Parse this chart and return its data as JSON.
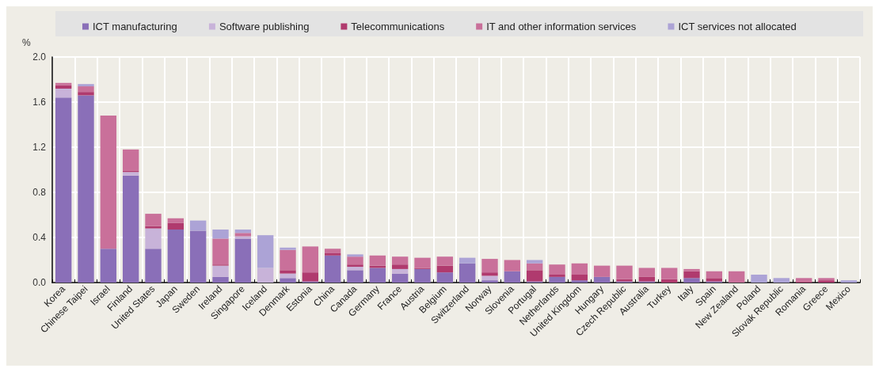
{
  "chart_data": {
    "type": "bar",
    "stacked": true,
    "ylabel": "%",
    "legend": "top",
    "grid": true,
    "categories": [
      "Korea",
      "Chinese Taipei",
      "Israel",
      "Finland",
      "United States",
      "Japan",
      "Sweden",
      "Ireland",
      "Singapore",
      "Iceland",
      "Denmark",
      "Estonia",
      "China",
      "Canada",
      "Germany",
      "France",
      "Austria",
      "Belgium",
      "Switzerland",
      "Norway",
      "Slovenia",
      "Portugal",
      "Netherlands",
      "United Kingdom",
      "Hungary",
      "Czech Republic",
      "Australia",
      "Turkey",
      "Italy",
      "Spain",
      "New Zealand",
      "Poland",
      "Slovak Republic",
      "Romania",
      "Greece",
      "Mexico"
    ],
    "ylim": [
      0,
      2
    ],
    "yticks": [
      {
        "value": 0,
        "label": "0.0"
      },
      {
        "value": 0.4,
        "label": "0.4"
      },
      {
        "value": 0.8,
        "label": "0.8"
      },
      {
        "value": 1.2,
        "label": "1.2"
      },
      {
        "value": 1.6,
        "label": "1.6"
      },
      {
        "value": 2,
        "label": "2.0"
      }
    ],
    "series": [
      {
        "name": "ICT manufacturing",
        "color": "#8a6fb8",
        "values": [
          1.64,
          1.66,
          0.3,
          0.95,
          0.3,
          0.47,
          0.46,
          0.05,
          0.39,
          0,
          0.04,
          0.01,
          0.24,
          0.11,
          0.13,
          0.08,
          0.12,
          0.09,
          0.17,
          0.02,
          0.1,
          0.01,
          0.05,
          0.02,
          0.05,
          0.01,
          0.01,
          0,
          0.04,
          0.01,
          0,
          0,
          0,
          0,
          0,
          0
        ]
      },
      {
        "name": "Software publishing",
        "color": "#c8b3d9",
        "values": [
          0.08,
          0,
          0,
          0.03,
          0.18,
          0,
          0,
          0.1,
          0.02,
          0.13,
          0.04,
          0,
          0,
          0.03,
          0,
          0.04,
          0,
          0,
          0,
          0.04,
          0,
          0,
          0,
          0,
          0,
          0,
          0,
          0,
          0,
          0,
          0,
          0,
          0,
          0,
          0,
          0
        ]
      },
      {
        "name": "Telecommunications",
        "color": "#b03a6e",
        "values": [
          0.03,
          0.03,
          0,
          0.01,
          0.02,
          0.06,
          0,
          0.01,
          0,
          0,
          0.03,
          0.08,
          0.02,
          0.02,
          0.02,
          0.04,
          0.01,
          0.06,
          0,
          0.03,
          0,
          0.1,
          0.02,
          0.05,
          0,
          0.02,
          0.04,
          0.03,
          0.06,
          0.03,
          0,
          0,
          0,
          0.01,
          0.02,
          0
        ]
      },
      {
        "name": "IT and other information services",
        "color": "#c9709a",
        "values": [
          0.02,
          0.05,
          1.18,
          0.19,
          0.11,
          0.04,
          0,
          0.23,
          0.03,
          0,
          0.18,
          0.23,
          0.04,
          0.07,
          0.09,
          0.07,
          0.09,
          0.08,
          0,
          0.12,
          0.1,
          0.06,
          0.09,
          0.1,
          0.1,
          0.12,
          0.08,
          0.1,
          0.02,
          0.06,
          0.1,
          0,
          0,
          0.03,
          0.02,
          0
        ]
      },
      {
        "name": "ICT services not allocated",
        "color": "#aca3d6",
        "values": [
          0,
          0.02,
          0,
          0,
          0,
          0,
          0.09,
          0.08,
          0.03,
          0.29,
          0.02,
          0,
          0,
          0.02,
          0,
          0,
          0,
          0,
          0.05,
          0,
          0,
          0.03,
          0,
          0,
          0,
          0,
          0,
          0,
          0,
          0,
          0,
          0.07,
          0.04,
          0,
          0,
          0.02
        ]
      }
    ]
  }
}
